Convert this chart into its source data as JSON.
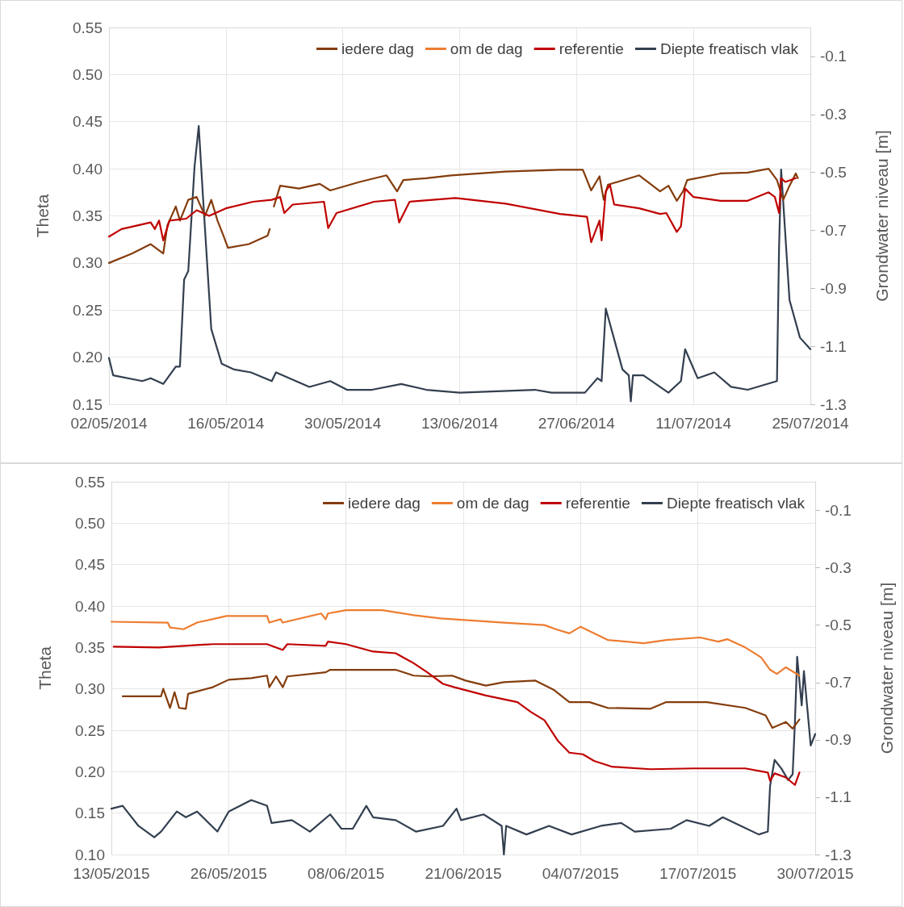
{
  "chart_data": [
    {
      "type": "line",
      "ylabel": "Theta",
      "y2label": "Grondwater niveau [m]",
      "grid": true,
      "legend": "top right",
      "marker": "none",
      "xlim": [
        "2014-05-02",
        "2014-07-25"
      ],
      "xticks": [
        {
          "value": "2014-05-02",
          "label": "02/05/2014"
        },
        {
          "value": "2014-05-16",
          "label": "16/05/2014"
        },
        {
          "value": "2014-05-30",
          "label": "30/05/2014"
        },
        {
          "value": "2014-06-13",
          "label": "13/06/2014"
        },
        {
          "value": "2014-06-27",
          "label": "27/06/2014"
        },
        {
          "value": "2014-07-11",
          "label": "11/07/2014"
        },
        {
          "value": "2014-07-25",
          "label": "25/07/2014"
        }
      ],
      "ylim": [
        0.15,
        0.55
      ],
      "yticks": [
        {
          "value": 0.15,
          "label": "0.15"
        },
        {
          "value": 0.2,
          "label": "0.20"
        },
        {
          "value": 0.25,
          "label": "0.25"
        },
        {
          "value": 0.3,
          "label": "0.30"
        },
        {
          "value": 0.35,
          "label": "0.35"
        },
        {
          "value": 0.4,
          "label": "0.40"
        },
        {
          "value": 0.45,
          "label": "0.45"
        },
        {
          "value": 0.5,
          "label": "0.50"
        },
        {
          "value": 0.55,
          "label": "0.55"
        }
      ],
      "y2lim": [
        -1.3,
        0.0
      ],
      "y2ticks": [
        -1.3,
        -1.1,
        -0.9,
        -0.7,
        -0.5,
        -0.3,
        -0.1
      ],
      "series": [
        {
          "name": "iedere dag",
          "color": "#843c0c",
          "x": [
            "2014-05-02",
            "2014-05-04T18:00",
            "2014-05-07",
            "2014-05-08T12:00",
            "2014-05-09",
            "2014-05-10",
            "2014-05-10T12:00",
            "2014-05-11T12:00",
            "2014-05-12T12:00",
            "2014-05-13T12:00",
            "2014-05-14T06:00",
            "2014-05-15",
            "2014-05-15T18:00",
            "2014-05-16T06:00",
            "2014-05-18T18:00",
            "2014-05-21",
            "2014-05-21T06:00",
            "2014-05-21T12:00",
            "2014-05-21T18:00",
            "2014-05-22T12:00",
            "2014-05-24T18:00",
            "2014-05-27T06:00",
            "2014-05-28T12:00",
            "2014-06-01",
            "2014-06-04T06:00",
            "2014-06-05T12:00",
            "2014-06-06T06:00",
            "2014-06-09",
            "2014-06-12",
            "2014-06-18T12:00",
            "2014-06-25",
            "2014-06-27T18:00",
            "2014-06-28T18:00",
            "2014-06-29T18:00",
            "2014-06-30T06:00",
            "2014-06-30T18:00",
            "2014-07-04T12:00",
            "2014-07-07",
            "2014-07-08",
            "2014-07-09",
            "2014-07-09T18:00",
            "2014-07-10T06:00",
            "2014-07-14T06:00",
            "2014-07-17T12:00",
            "2014-07-20",
            "2014-07-21",
            "2014-07-21T18:00",
            "2014-07-22T12:00",
            "2014-07-23T06:00",
            "2014-07-23T12:00"
          ],
          "values": [
            0.3,
            0.31,
            0.32,
            0.31,
            0.34,
            0.36,
            0.345,
            0.367,
            0.37,
            0.35,
            0.367,
            0.345,
            0.328,
            0.316,
            0.32,
            0.329,
            0.336,
            null,
            0.36,
            0.382,
            0.379,
            0.384,
            0.377,
            0.386,
            0.393,
            0.376,
            0.388,
            0.39,
            0.393,
            0.397,
            0.399,
            0.399,
            0.377,
            0.392,
            0.367,
            0.383,
            0.393,
            0.376,
            0.382,
            0.366,
            0.376,
            0.388,
            0.395,
            0.396,
            0.4,
            0.388,
            0.367,
            0.382,
            0.395,
            0.39
          ]
        },
        {
          "name": "om de dag",
          "color": "#ed7d31"
        },
        {
          "name": "referentie",
          "color": "#c00000",
          "x": [
            "2014-05-02",
            "2014-05-03T12:00",
            "2014-05-07",
            "2014-05-07T12:00",
            "2014-05-08",
            "2014-05-08T12:00",
            "2014-05-09T06:00",
            "2014-05-11T06:00",
            "2014-05-12T12:00",
            "2014-05-14",
            "2014-05-16",
            "2014-05-19T06:00",
            "2014-05-21T12:00",
            "2014-05-22T12:00",
            "2014-05-23",
            "2014-05-24",
            "2014-05-27T18:00",
            "2014-05-28T06:00",
            "2014-05-29T06:00",
            "2014-06-02T18:00",
            "2014-06-05T06:00",
            "2014-06-05T18:00",
            "2014-06-07",
            "2014-06-12T12:00",
            "2014-06-18T12:00",
            "2014-06-25",
            "2014-06-28T06:00",
            "2014-06-28T18:00",
            "2014-06-29T18:00",
            "2014-06-30",
            "2014-06-30T12:00",
            "2014-07-01",
            "2014-07-01T12:00",
            "2014-07-04T12:00",
            "2014-07-07",
            "2014-07-07T18:00",
            "2014-07-09",
            "2014-07-09T12:00",
            "2014-07-10",
            "2014-07-11",
            "2014-07-14T06:00",
            "2014-07-17T12:00",
            "2014-07-20",
            "2014-07-20T18:00",
            "2014-07-21T06:00",
            "2014-07-21T12:00",
            "2014-07-22",
            "2014-07-23T06:00"
          ],
          "values": [
            0.328,
            0.336,
            0.343,
            0.336,
            0.345,
            0.324,
            0.345,
            0.347,
            0.356,
            0.35,
            0.358,
            0.365,
            0.367,
            0.37,
            0.353,
            0.362,
            0.365,
            0.337,
            0.353,
            0.365,
            0.367,
            0.343,
            0.365,
            0.369,
            0.363,
            0.352,
            0.349,
            0.322,
            0.345,
            0.324,
            0.376,
            0.383,
            0.362,
            0.358,
            0.352,
            0.353,
            0.333,
            0.339,
            0.379,
            0.37,
            0.366,
            0.366,
            0.375,
            0.37,
            0.353,
            0.39,
            0.386,
            0.39
          ]
        },
        {
          "name": "Diepte freatisch vlak",
          "color": "#333f50",
          "axis": "y2",
          "x": [
            "2014-05-02",
            "2014-05-02T12:00",
            "2014-05-06",
            "2014-05-07",
            "2014-05-08T12:00",
            "2014-05-10",
            "2014-05-10T12:00",
            "2014-05-11",
            "2014-05-11T12:00",
            "2014-05-12T06:00",
            "2014-05-12T18:00",
            "2014-05-13T06:00",
            "2014-05-14T06:00",
            "2014-05-15T12:00",
            "2014-05-17",
            "2014-05-19",
            "2014-05-21T12:00",
            "2014-05-22",
            "2014-05-26",
            "2014-05-28T12:00",
            "2014-05-30T12:00",
            "2014-06-02T12:00",
            "2014-06-06",
            "2014-06-09",
            "2014-06-13",
            "2014-06-22",
            "2014-06-24",
            "2014-06-28",
            "2014-06-29T12:00",
            "2014-06-30",
            "2014-06-30T12:00",
            "2014-07-02T12:00",
            "2014-07-03T06:00",
            "2014-07-03T12:00",
            "2014-07-03T18:00",
            "2014-07-05",
            "2014-07-08",
            "2014-07-09T12:00",
            "2014-07-10",
            "2014-07-11T12:00",
            "2014-07-13T12:00",
            "2014-07-15T12:00",
            "2014-07-17T12:00",
            "2014-07-21",
            "2014-07-21T06:00",
            "2014-07-21T12:00",
            "2014-07-22T12:00",
            "2014-07-23T18:00",
            "2014-07-25"
          ],
          "values": [
            -1.14,
            -1.2,
            -1.22,
            -1.21,
            -1.23,
            -1.17,
            -1.17,
            -0.87,
            -0.84,
            -0.48,
            -0.34,
            -0.58,
            -1.04,
            -1.16,
            -1.18,
            -1.19,
            -1.22,
            -1.19,
            -1.24,
            -1.22,
            -1.25,
            -1.25,
            -1.23,
            -1.25,
            -1.26,
            -1.25,
            -1.26,
            -1.26,
            -1.21,
            -1.22,
            -0.97,
            -1.18,
            -1.2,
            -1.29,
            -1.2,
            -1.2,
            -1.26,
            -1.22,
            -1.11,
            -1.21,
            -1.19,
            -1.24,
            -1.25,
            -1.22,
            -0.76,
            -0.49,
            -0.94,
            -1.07,
            -1.11
          ]
        }
      ]
    },
    {
      "type": "line",
      "ylabel": "Theta",
      "y2label": "Grondwater niveau [m]",
      "grid": true,
      "legend": "top right",
      "marker": "none",
      "xlim": [
        "2015-05-13",
        "2015-07-30"
      ],
      "xticks": [
        {
          "value": "2015-05-13",
          "label": "13/05/2015"
        },
        {
          "value": "2015-05-26",
          "label": "26/05/2015"
        },
        {
          "value": "2015-06-08",
          "label": "08/06/2015"
        },
        {
          "value": "2015-06-21",
          "label": "21/06/2015"
        },
        {
          "value": "2015-07-04",
          "label": "04/07/2015"
        },
        {
          "value": "2015-07-17",
          "label": "17/07/2015"
        },
        {
          "value": "2015-07-30",
          "label": "30/07/2015"
        }
      ],
      "ylim": [
        0.1,
        0.55
      ],
      "yticks": [
        {
          "value": 0.1,
          "label": "0.10"
        },
        {
          "value": 0.15,
          "label": "0.15"
        },
        {
          "value": 0.2,
          "label": "0.20"
        },
        {
          "value": 0.25,
          "label": "0.25"
        },
        {
          "value": 0.3,
          "label": "0.30"
        },
        {
          "value": 0.35,
          "label": "0.35"
        },
        {
          "value": 0.4,
          "label": "0.40"
        },
        {
          "value": 0.45,
          "label": "0.45"
        },
        {
          "value": 0.5,
          "label": "0.50"
        },
        {
          "value": 0.55,
          "label": "0.55"
        }
      ],
      "y2lim": [
        -1.3,
        0.0
      ],
      "y2ticks": [
        -1.3,
        -1.1,
        -0.9,
        -0.7,
        -0.5,
        -0.3,
        -0.1
      ],
      "series": [
        {
          "name": "iedere dag",
          "color": "#843c0c",
          "x": [
            "2015-05-14T06:00",
            "2015-05-18T12:00",
            "2015-05-18T18:00",
            "2015-05-19T12:00",
            "2015-05-20",
            "2015-05-20T12:00",
            "2015-05-21T06:00",
            "2015-05-21T12:00",
            "2015-05-24T06:00",
            "2015-05-26",
            "2015-05-28T12:00",
            "2015-05-30T06:00",
            "2015-05-30T12:00",
            "2015-05-31T06:00",
            "2015-06-01",
            "2015-06-01T12:00",
            "2015-06-05T18:00",
            "2015-06-06T06:00",
            "2015-06-13T12:00",
            "2015-06-15T12:00",
            "2015-06-17T06:00",
            "2015-06-19T18:00",
            "2015-06-21T06:00",
            "2015-06-23T12:00",
            "2015-06-25T12:00",
            "2015-06-29",
            "2015-07-01",
            "2015-07-02T18:00",
            "2015-07-05",
            "2015-07-07",
            "2015-07-11T18:00",
            "2015-07-13T12:00",
            "2015-07-18",
            "2015-07-22T06:00",
            "2015-07-24T12:00",
            "2015-07-25T06:00",
            "2015-07-26T18:00",
            "2015-07-27T12:00",
            "2015-07-28T06:00"
          ],
          "values": [
            0.291,
            0.291,
            0.3,
            0.277,
            0.296,
            0.277,
            0.276,
            0.294,
            0.302,
            0.311,
            0.313,
            0.316,
            0.302,
            0.315,
            0.302,
            0.315,
            0.32,
            0.323,
            0.323,
            0.316,
            0.315,
            0.316,
            0.31,
            0.304,
            0.308,
            0.31,
            0.299,
            0.284,
            0.284,
            0.277,
            0.276,
            0.284,
            0.284,
            0.277,
            0.268,
            0.253,
            0.26,
            0.252,
            0.263
          ]
        },
        {
          "name": "om de dag",
          "color": "#ed7d31",
          "x": [
            "2015-05-13",
            "2015-05-19T06:00",
            "2015-05-19T12:00",
            "2015-05-21",
            "2015-05-22T12:00",
            "2015-05-25T18:00",
            "2015-05-30T06:00",
            "2015-05-30T12:00",
            "2015-05-31T18:00",
            "2015-06-01",
            "2015-06-05T06:00",
            "2015-06-05T18:00",
            "2015-06-06",
            "2015-06-08",
            "2015-06-12",
            "2015-06-15T12:00",
            "2015-06-18T12:00",
            "2015-06-25T12:00",
            "2015-06-30",
            "2015-07-01T06:00",
            "2015-07-02T18:00",
            "2015-07-04",
            "2015-07-07",
            "2015-07-11",
            "2015-07-13T12:00",
            "2015-07-17T06:00",
            "2015-07-19T06:00",
            "2015-07-20T06:00",
            "2015-07-22T06:00",
            "2015-07-24",
            "2015-07-25",
            "2015-07-25T18:00",
            "2015-07-26T18:00",
            "2015-07-28T06:00"
          ],
          "values": [
            0.381,
            0.38,
            0.374,
            0.372,
            0.38,
            0.388,
            0.388,
            0.38,
            0.384,
            0.38,
            0.391,
            0.384,
            0.391,
            0.395,
            0.395,
            0.389,
            0.385,
            0.38,
            0.377,
            0.372,
            0.367,
            0.375,
            0.359,
            0.355,
            0.359,
            0.362,
            0.357,
            0.36,
            0.35,
            0.338,
            0.323,
            0.318,
            0.326,
            0.316
          ]
        },
        {
          "name": "referentie",
          "color": "#c00000",
          "x": [
            "2015-05-13T06:00",
            "2015-05-18T06:00",
            "2015-05-24T06:00",
            "2015-05-30T06:00",
            "2015-06-01",
            "2015-06-01T12:00",
            "2015-06-05T18:00",
            "2015-06-06",
            "2015-06-08",
            "2015-06-11",
            "2015-06-13T12:00",
            "2015-06-15T12:00",
            "2015-06-17",
            "2015-06-18T18:00",
            "2015-06-20",
            "2015-06-23T12:00",
            "2015-06-27",
            "2015-06-28T12:00",
            "2015-06-30",
            "2015-07-01T12:00",
            "2015-07-02T18:00",
            "2015-07-04T06:00",
            "2015-07-05T12:00",
            "2015-07-07T12:00",
            "2015-07-11T18:00",
            "2015-07-16T12:00",
            "2015-07-22T06:00",
            "2015-07-24T18:00",
            "2015-07-25",
            "2015-07-25T12:00",
            "2015-07-26T18:00",
            "2015-07-27T18:00",
            "2015-07-28T06:00"
          ],
          "values": [
            0.351,
            0.35,
            0.354,
            0.354,
            0.347,
            0.354,
            0.352,
            0.357,
            0.354,
            0.345,
            0.343,
            0.331,
            0.32,
            0.306,
            0.302,
            0.292,
            0.284,
            0.272,
            0.262,
            0.237,
            0.223,
            0.221,
            0.213,
            0.206,
            0.203,
            0.204,
            0.204,
            0.199,
            0.189,
            0.198,
            0.193,
            0.184,
            0.199
          ]
        },
        {
          "name": "Diepte freatisch vlak",
          "color": "#333f50",
          "axis": "y2",
          "x": [
            "2015-05-13",
            "2015-05-14T06:00",
            "2015-05-16",
            "2015-05-17T18:00",
            "2015-05-18T12:00",
            "2015-05-20T06:00",
            "2015-05-21T06:00",
            "2015-05-22T12:00",
            "2015-05-24T18:00",
            "2015-05-26",
            "2015-05-28T12:00",
            "2015-05-30T06:00",
            "2015-05-30T18:00",
            "2015-06-02",
            "2015-06-04",
            "2015-06-06T06:00",
            "2015-06-07T12:00",
            "2015-06-08T18:00",
            "2015-06-10T06:00",
            "2015-06-11",
            "2015-06-13T12:00",
            "2015-06-15T18:00",
            "2015-06-18T18:00",
            "2015-06-20T06:00",
            "2015-06-20T18:00",
            "2015-06-23T06:00",
            "2015-06-25T06:00",
            "2015-06-25T12:00",
            "2015-06-25T18:00",
            "2015-06-28",
            "2015-06-30T12:00",
            "2015-07-03",
            "2015-07-06T06:00",
            "2015-07-08T12:00",
            "2015-07-10",
            "2015-07-14",
            "2015-07-15T18:00",
            "2015-07-18T06:00",
            "2015-07-19T18:00",
            "2015-07-21T18:00",
            "2015-07-23T18:00",
            "2015-07-24T18:00",
            "2015-07-25",
            "2015-07-25T12:00",
            "2015-07-26T06:00",
            "2015-07-27",
            "2015-07-27T12:00",
            "2015-07-27T18:00",
            "2015-07-28",
            "2015-07-28T12:00",
            "2015-07-28T18:00",
            "2015-07-29T12:00",
            "2015-07-30"
          ],
          "values": [
            -1.14,
            -1.13,
            -1.2,
            -1.24,
            -1.22,
            -1.15,
            -1.17,
            -1.15,
            -1.22,
            -1.15,
            -1.11,
            -1.13,
            -1.19,
            -1.18,
            -1.22,
            -1.16,
            -1.21,
            -1.21,
            -1.13,
            -1.17,
            -1.18,
            -1.22,
            -1.2,
            -1.14,
            -1.18,
            -1.16,
            -1.2,
            -1.3,
            -1.2,
            -1.23,
            -1.2,
            -1.23,
            -1.2,
            -1.19,
            -1.22,
            -1.21,
            -1.18,
            -1.2,
            -1.17,
            -1.2,
            -1.23,
            -1.22,
            -1.06,
            -0.97,
            -1.0,
            -1.04,
            -1.02,
            -0.84,
            -0.61,
            -0.78,
            -0.66,
            -0.92,
            -0.88
          ]
        }
      ]
    }
  ]
}
